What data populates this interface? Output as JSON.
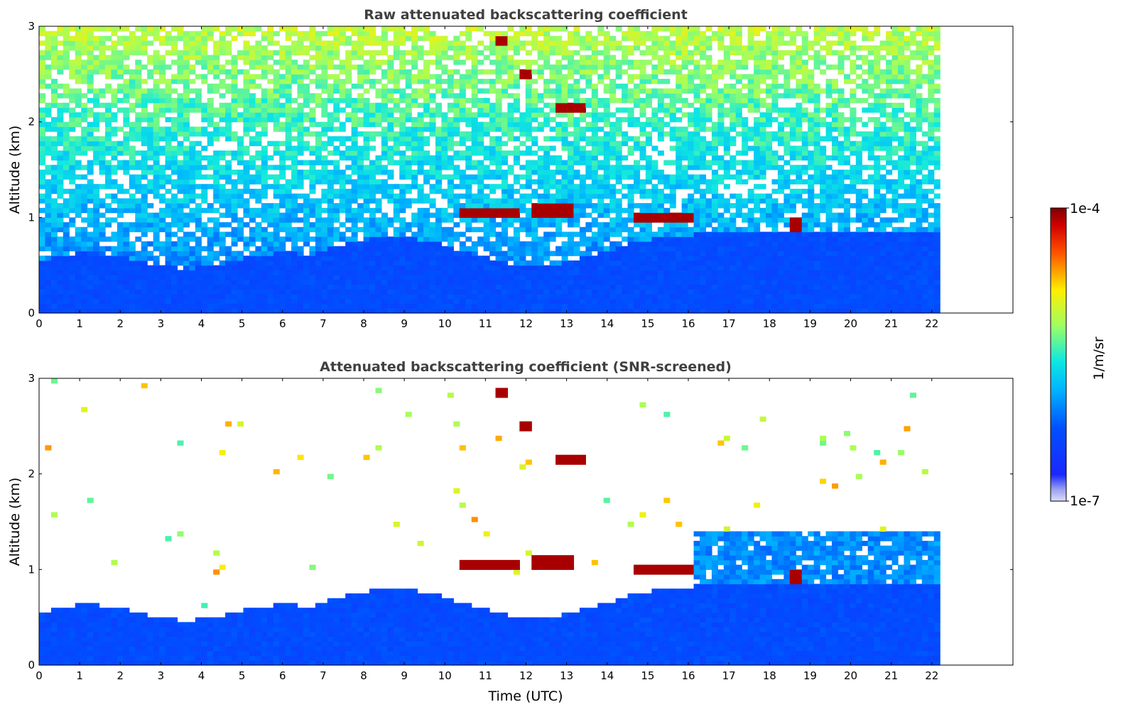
{
  "figure": {
    "panels": [
      {
        "id": "raw",
        "title": "Raw attenuated backscattering coefficient",
        "ylabel": "Altitude (km)",
        "xlabel": ""
      },
      {
        "id": "screened",
        "title": "Attenuated backscattering coefficient (SNR-screened)",
        "ylabel": "Altitude (km)",
        "xlabel": "Time (UTC)"
      }
    ],
    "colorbar": {
      "label": "1/m/sr",
      "max_label": "1e-4",
      "min_label": "1e-7",
      "colormap": "jet",
      "scale": "log",
      "range": [
        1e-07,
        0.0001
      ]
    }
  },
  "chart_data": [
    {
      "type": "heatmap",
      "title": "Raw attenuated backscattering coefficient",
      "xlabel": "",
      "ylabel": "Altitude (km)",
      "xlim": [
        0,
        24
      ],
      "ylim": [
        0,
        3
      ],
      "x_ticks": [
        "0",
        "1",
        "2",
        "3",
        "4",
        "5",
        "6",
        "7",
        "8",
        "9",
        "10",
        "11",
        "12",
        "13",
        "14",
        "15",
        "16",
        "17",
        "18",
        "19",
        "20",
        "21",
        "22"
      ],
      "y_ticks": [
        "0",
        "1",
        "2",
        "3"
      ],
      "data_extent_x": [
        0,
        22.2
      ],
      "screened": false,
      "features": [
        {
          "kind": "boundary layer (high backscatter)",
          "x": [
            0,
            22.2
          ],
          "top_km": 0.6
        },
        {
          "kind": "cloud layer",
          "x": [
            10.3,
            11.8
          ],
          "alt_km": 1.05
        },
        {
          "kind": "cloud layer",
          "x": [
            12.1,
            13.1
          ],
          "alt_km": 1.07
        },
        {
          "kind": "cloud layer",
          "x": [
            14.7,
            16.2
          ],
          "alt_km": 1.0
        },
        {
          "kind": "cloud layer",
          "x": [
            18.5,
            18.85
          ],
          "alt_km": 0.93
        },
        {
          "kind": "high cloud",
          "x": [
            11.2,
            11.5
          ],
          "alt_km": 2.85
        },
        {
          "kind": "high cloud",
          "x": [
            11.8,
            12.2
          ],
          "alt_km": 2.5
        },
        {
          "kind": "high cloud",
          "x": [
            12.8,
            13.5
          ],
          "alt_km": 2.15
        }
      ]
    },
    {
      "type": "heatmap",
      "title": "Attenuated backscattering coefficient (SNR-screened)",
      "xlabel": "Time (UTC)",
      "ylabel": "Altitude (km)",
      "xlim": [
        0,
        24
      ],
      "ylim": [
        0,
        3
      ],
      "x_ticks": [
        "0",
        "1",
        "2",
        "3",
        "4",
        "5",
        "6",
        "7",
        "8",
        "9",
        "10",
        "11",
        "12",
        "13",
        "14",
        "15",
        "16",
        "17",
        "18",
        "19",
        "20",
        "21",
        "22"
      ],
      "y_ticks": [
        "0",
        "1",
        "2",
        "3"
      ],
      "data_extent_x": [
        0,
        22.2
      ],
      "screened": true,
      "features": [
        {
          "kind": "boundary layer (high backscatter)",
          "x": [
            0,
            22.2
          ],
          "top_km": 0.6
        },
        {
          "kind": "cloud layer",
          "x": [
            10.3,
            11.8
          ],
          "alt_km": 1.05
        },
        {
          "kind": "cloud layer",
          "x": [
            12.1,
            13.1
          ],
          "alt_km": 1.07
        },
        {
          "kind": "cloud layer",
          "x": [
            14.7,
            16.2
          ],
          "alt_km": 1.0
        },
        {
          "kind": "cloud layer",
          "x": [
            18.5,
            18.85
          ],
          "alt_km": 0.93
        },
        {
          "kind": "high cloud",
          "x": [
            11.2,
            11.5
          ],
          "alt_km": 2.85
        },
        {
          "kind": "high cloud",
          "x": [
            11.8,
            12.2
          ],
          "alt_km": 2.5
        },
        {
          "kind": "high cloud",
          "x": [
            12.8,
            13.5
          ],
          "alt_km": 2.15
        }
      ]
    }
  ]
}
